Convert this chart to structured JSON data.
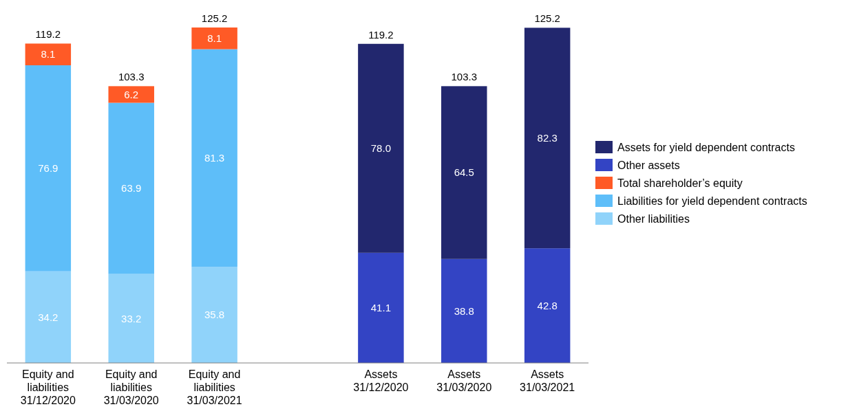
{
  "chart_data": {
    "type": "bar",
    "stacked": true,
    "legend": "right",
    "categories": [
      "Equity and\nliabilities\n31/12/2020",
      "Equity and\nliabilities\n31/03/2020",
      "Equity and\nliabilities\n31/03/2021",
      null,
      "Assets\n31/12/2020",
      "Assets\n31/03/2020",
      "Assets\n31/03/2021"
    ],
    "series": [
      {
        "name": "Other liabilities",
        "color": "#90d3fa",
        "values": [
          34.2,
          33.2,
          35.8,
          null,
          null,
          null,
          null
        ],
        "value_labels": [
          "34.2",
          "33.2",
          "35.8",
          null,
          null,
          null,
          null
        ]
      },
      {
        "name": "Liabilities for yield dependent contracts",
        "color": "#5ebef9",
        "values": [
          76.9,
          63.9,
          81.3,
          null,
          null,
          null,
          null
        ],
        "value_labels": [
          "76.9",
          "63.9",
          "81.3",
          null,
          null,
          null,
          null
        ]
      },
      {
        "name": "Total shareholder’s equity",
        "color": "#ff5a26",
        "values": [
          8.1,
          6.2,
          8.1,
          null,
          null,
          null,
          null
        ],
        "value_labels": [
          "8.1",
          "6.2",
          "8.1",
          null,
          null,
          null,
          null
        ]
      },
      {
        "name": "Other assets",
        "color": "#3344c4",
        "values": [
          null,
          null,
          null,
          null,
          41.1,
          38.8,
          42.8
        ],
        "value_labels": [
          null,
          null,
          null,
          null,
          "41.1",
          "38.8",
          "42.8"
        ]
      },
      {
        "name": "Assets for yield dependent contracts",
        "color": "#22276e",
        "values": [
          null,
          null,
          null,
          null,
          78.0,
          64.5,
          82.3
        ],
        "value_labels": [
          null,
          null,
          null,
          null,
          "78.0",
          "64.5",
          "82.3"
        ]
      }
    ],
    "totals": [
      "119.2",
      "103.3",
      "125.2",
      null,
      "119.2",
      "103.3",
      "125.2"
    ]
  }
}
